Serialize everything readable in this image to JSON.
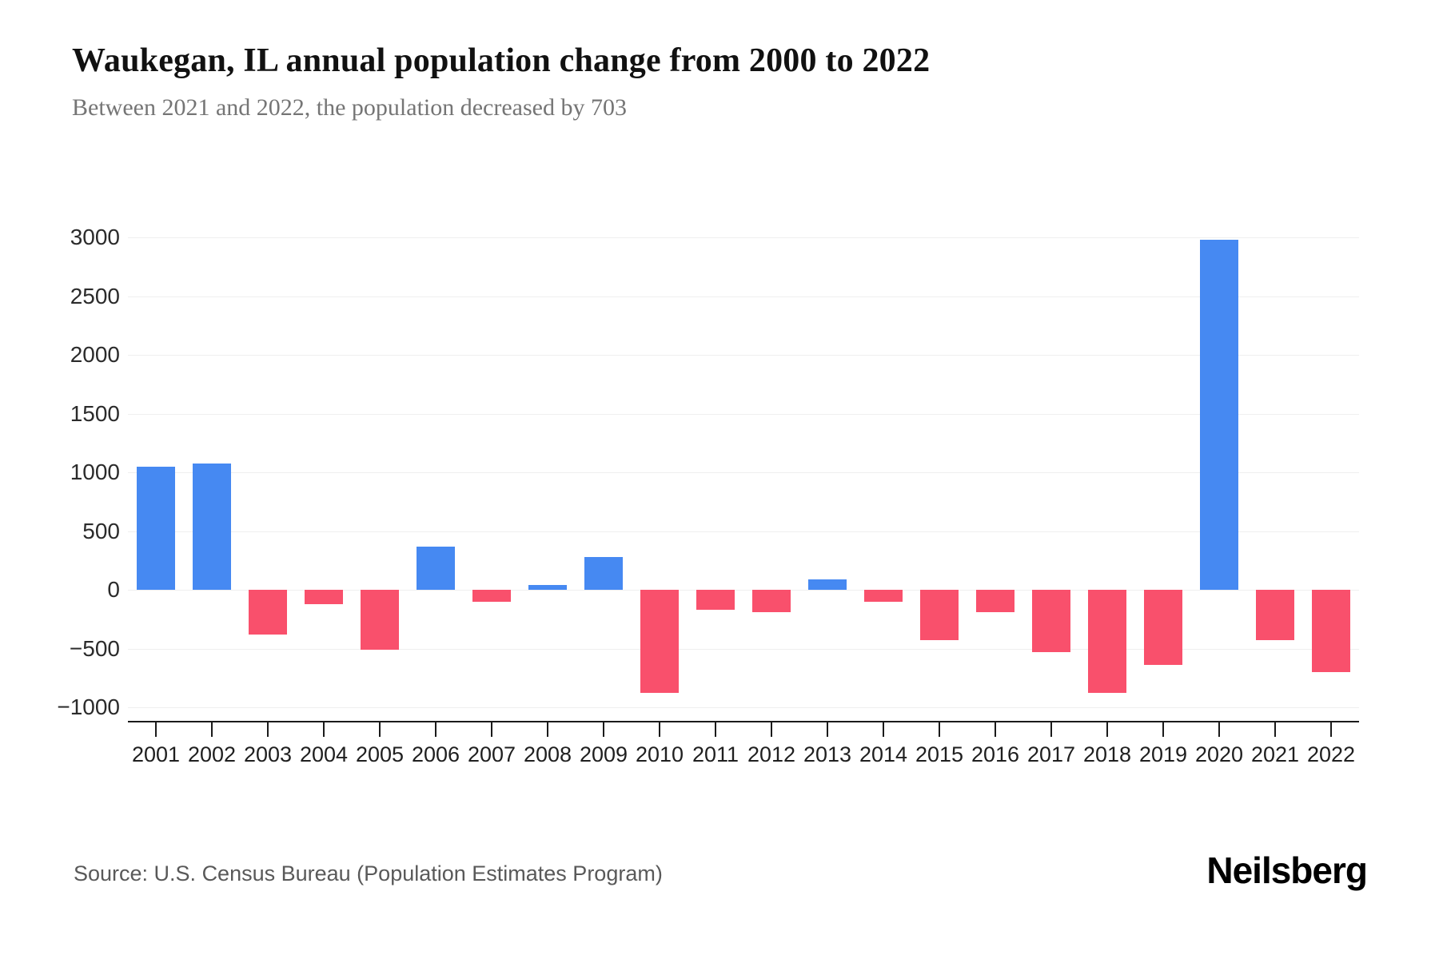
{
  "header": {
    "title": "Waukegan, IL annual population change from 2000 to 2022",
    "subtitle": "Between 2021 and 2022, the population decreased by 703"
  },
  "chart_data": {
    "type": "bar",
    "title": "Waukegan, IL annual population change from 2000 to 2022",
    "categories": [
      "2001",
      "2002",
      "2003",
      "2004",
      "2005",
      "2006",
      "2007",
      "2008",
      "2009",
      "2010",
      "2011",
      "2012",
      "2013",
      "2014",
      "2015",
      "2016",
      "2017",
      "2018",
      "2019",
      "2020",
      "2021",
      "2022"
    ],
    "values": [
      1050,
      1075,
      -380,
      -120,
      -510,
      370,
      -100,
      40,
      280,
      -880,
      -170,
      -190,
      90,
      -100,
      -430,
      -190,
      -530,
      -875,
      -640,
      2980,
      -430,
      -703
    ],
    "xlabel": "",
    "ylabel": "",
    "ylim": [
      -1000,
      3000
    ],
    "yticks": [
      3000,
      2500,
      2000,
      1500,
      1000,
      500,
      0,
      -500,
      -1000
    ],
    "grid": "horizontal-light",
    "legend": "none",
    "positive_color": "#4689f2",
    "negative_color": "#f9506c"
  },
  "footer": {
    "source": "Source: U.S. Census Bureau (Population Estimates Program)",
    "brand": "Neilsberg"
  }
}
